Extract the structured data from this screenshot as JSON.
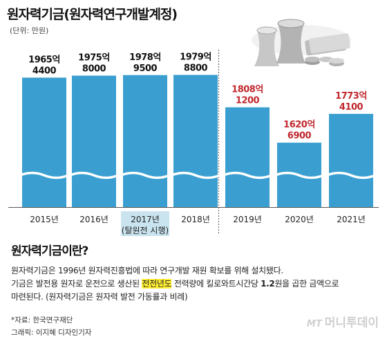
{
  "header": {
    "title": "원자력기금(원자력연구개발계정)",
    "unit": "(단위: 만원)"
  },
  "chart_data": {
    "type": "bar",
    "categories": [
      "2015년",
      "2016년",
      "2017년",
      "2018년",
      "2019년",
      "2020년",
      "2021년"
    ],
    "category_sublabels": [
      "",
      "",
      "(탈원전 시행)",
      "",
      "",
      "",
      ""
    ],
    "values": [
      19654400,
      19758000,
      19789500,
      19798800,
      18081200,
      16206900,
      17734100
    ],
    "label_top": [
      "1965억",
      "1975억",
      "1978억",
      "1979억",
      "1808억",
      "1620억",
      "1773억"
    ],
    "label_bottom": [
      "4400",
      "8000",
      "9500",
      "8800",
      "1200",
      "6900",
      "4100"
    ],
    "title": "원자력기금(원자력연구개발계정)",
    "ylabel": "(단위: 만원)",
    "axis_break": true,
    "colors": {
      "bar": "#3a9fd0",
      "label_before": "#111111",
      "label_after": "#c0272d",
      "highlight_category": "#c9e4ef"
    }
  },
  "info": {
    "heading": "원자력기금이란?",
    "line1": "원자력기금은 1996년 원자력진흥법에 따라 연구개발 재원 확보를 위해 설치됐다.",
    "line2_a": "기금은 발전용 원자로 운전으로 생산된 ",
    "line2_highlight": "전전년도",
    "line2_b": " 전력량에 킬로와트시간당 ",
    "line2_bold": "1.2",
    "line2_c": "원을 곱한 금액으로",
    "line3": "마련된다. (원자력기금은 원자력 발전 가동률과 비례)"
  },
  "footer": {
    "source": "*자료: 한국연구재단",
    "credit": "그래픽: 이지혜 디자인기자",
    "logo_mark": "MT",
    "logo_text": "머니투데이"
  }
}
